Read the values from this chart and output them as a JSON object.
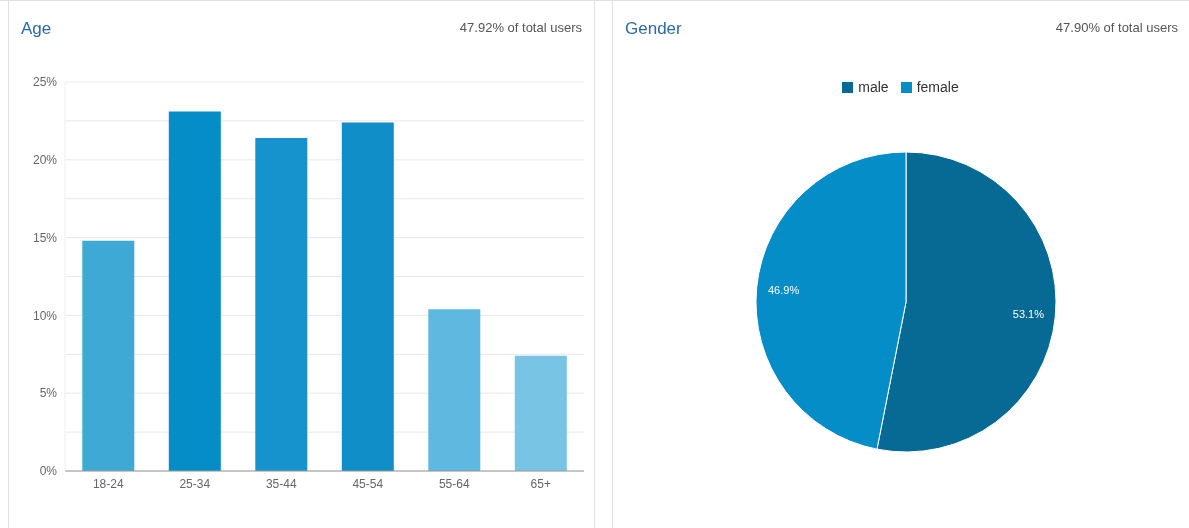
{
  "chart_data": [
    {
      "type": "bar",
      "title": "Age",
      "annotations": [
        "47.92% of total users"
      ],
      "categories": [
        "18-24",
        "25-34",
        "35-44",
        "45-54",
        "55-64",
        "65+"
      ],
      "values": [
        14.8,
        23.1,
        21.4,
        22.4,
        10.4,
        7.4
      ],
      "colors": [
        "#3fa9d6",
        "#058dc7",
        "#1692cc",
        "#0f8ec8",
        "#5fb8df",
        "#77c4e4"
      ],
      "ylim": [
        0,
        25
      ],
      "yticks": [
        {
          "value": 0,
          "label": "0%"
        },
        {
          "value": 2.5,
          "label": null
        },
        {
          "value": 5,
          "label": "5%"
        },
        {
          "value": 7.5,
          "label": null
        },
        {
          "value": 10,
          "label": "10%"
        },
        {
          "value": 12.5,
          "label": null
        },
        {
          "value": 15,
          "label": "15%"
        },
        {
          "value": 17.5,
          "label": null
        },
        {
          "value": 20,
          "label": "20%"
        },
        {
          "value": 22.5,
          "label": null
        },
        {
          "value": 25,
          "label": "25%"
        }
      ],
      "grid": "y"
    },
    {
      "type": "pie",
      "title": "Gender",
      "annotations": [
        "47.90% of total users"
      ],
      "categories": [
        "male",
        "female"
      ],
      "values": [
        53.1,
        46.9
      ],
      "colors": [
        "#066a94",
        "#058dc7"
      ],
      "value_labels": [
        "53.1%",
        "46.9%"
      ],
      "legend": "top"
    }
  ]
}
